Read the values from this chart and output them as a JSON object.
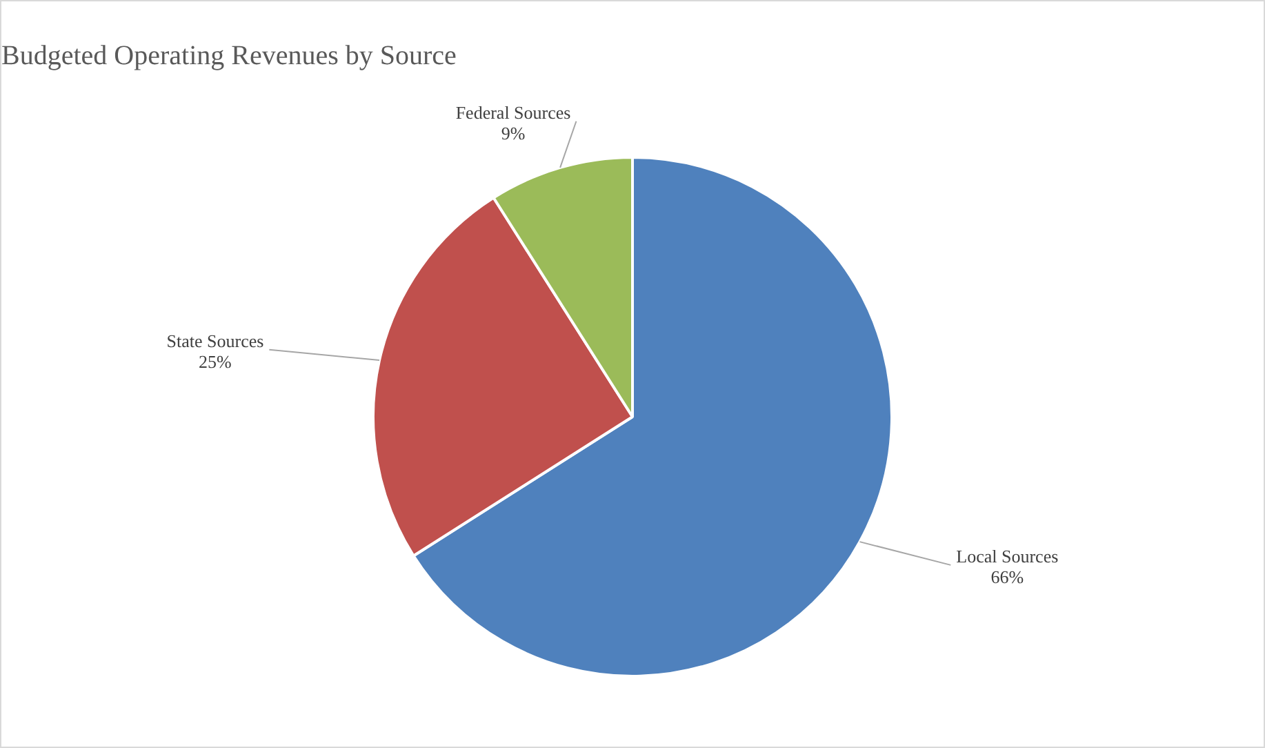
{
  "chart_data": {
    "type": "pie",
    "title": "Budgeted Operating Revenues by Source",
    "categories": [
      "Local Sources",
      "State Sources",
      "Federal Sources"
    ],
    "values": [
      66,
      25,
      9
    ],
    "value_labels": [
      "66%",
      "25%",
      "9%"
    ],
    "colors": [
      "#4f81bd",
      "#c0504d",
      "#9bbb59"
    ],
    "legend": false
  }
}
